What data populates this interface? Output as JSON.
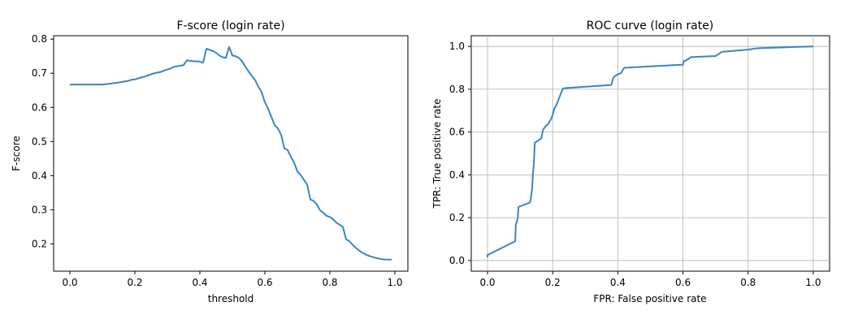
{
  "chart_data": [
    {
      "type": "line",
      "title": "F-score (login rate)",
      "xlabel": "threshold",
      "ylabel": "F-score",
      "xlim": [
        -0.05,
        1.04
      ],
      "ylim": [
        0.12,
        0.81
      ],
      "xticks": [
        0.0,
        0.2,
        0.4,
        0.6,
        0.8,
        1.0
      ],
      "xtick_labels": [
        "0.0",
        "0.2",
        "0.4",
        "0.6",
        "0.8",
        "1.0"
      ],
      "yticks": [
        0.2,
        0.3,
        0.4,
        0.5,
        0.6,
        0.7,
        0.8
      ],
      "ytick_labels": [
        "0.2",
        "0.3",
        "0.4",
        "0.5",
        "0.6",
        "0.7",
        "0.8"
      ],
      "grid": false,
      "line_color": "#3a86c0",
      "series": [
        {
          "x": [
            0.0,
            0.05,
            0.1,
            0.12,
            0.15,
            0.18,
            0.19,
            0.2,
            0.21,
            0.22,
            0.23,
            0.24,
            0.25,
            0.26,
            0.27,
            0.28,
            0.29,
            0.3,
            0.31,
            0.32,
            0.34,
            0.35,
            0.36,
            0.38,
            0.39,
            0.4,
            0.41,
            0.42,
            0.44,
            0.45,
            0.46,
            0.47,
            0.48,
            0.49,
            0.5,
            0.51,
            0.52,
            0.53,
            0.54,
            0.55,
            0.56,
            0.57,
            0.58,
            0.59,
            0.6,
            0.61,
            0.62,
            0.63,
            0.64,
            0.65,
            0.66,
            0.67,
            0.68,
            0.69,
            0.7,
            0.71,
            0.72,
            0.73,
            0.74,
            0.75,
            0.76,
            0.77,
            0.78,
            0.79,
            0.8,
            0.81,
            0.82,
            0.83,
            0.84,
            0.85,
            0.86,
            0.87,
            0.88,
            0.89,
            0.9,
            0.91,
            0.92,
            0.93,
            0.94,
            0.95,
            0.96,
            0.97,
            0.98,
            0.99
          ],
          "y": [
            0.667,
            0.667,
            0.667,
            0.669,
            0.673,
            0.678,
            0.681,
            0.682,
            0.685,
            0.688,
            0.69,
            0.694,
            0.697,
            0.7,
            0.702,
            0.704,
            0.708,
            0.711,
            0.714,
            0.719,
            0.722,
            0.724,
            0.738,
            0.735,
            0.735,
            0.734,
            0.731,
            0.772,
            0.765,
            0.76,
            0.752,
            0.747,
            0.745,
            0.777,
            0.752,
            0.75,
            0.745,
            0.735,
            0.719,
            0.705,
            0.692,
            0.68,
            0.66,
            0.645,
            0.615,
            0.596,
            0.572,
            0.548,
            0.538,
            0.52,
            0.48,
            0.475,
            0.455,
            0.438,
            0.412,
            0.402,
            0.388,
            0.374,
            0.33,
            0.326,
            0.315,
            0.298,
            0.291,
            0.282,
            0.279,
            0.272,
            0.262,
            0.256,
            0.25,
            0.213,
            0.208,
            0.197,
            0.188,
            0.181,
            0.174,
            0.169,
            0.165,
            0.162,
            0.159,
            0.157,
            0.155,
            0.154,
            0.154,
            0.154
          ]
        }
      ]
    },
    {
      "type": "line",
      "title": "ROC curve (login rate)",
      "xlabel": "FPR: False positive rate",
      "ylabel": "TPR: True positive rate",
      "xlim": [
        -0.05,
        1.05
      ],
      "ylim": [
        -0.05,
        1.05
      ],
      "xticks": [
        0.0,
        0.2,
        0.4,
        0.6,
        0.8,
        1.0
      ],
      "xtick_labels": [
        "0.0",
        "0.2",
        "0.4",
        "0.6",
        "0.8",
        "1.0"
      ],
      "yticks": [
        0.0,
        0.2,
        0.4,
        0.6,
        0.8,
        1.0
      ],
      "ytick_labels": [
        "0.0",
        "0.2",
        "0.4",
        "0.6",
        "0.8",
        "1.0"
      ],
      "grid": true,
      "line_color": "#3a86c0",
      "series": [
        {
          "x": [
            0.0,
            0.0,
            0.085,
            0.087,
            0.09,
            0.093,
            0.095,
            0.13,
            0.133,
            0.137,
            0.139,
            0.142,
            0.145,
            0.165,
            0.17,
            0.175,
            0.18,
            0.188,
            0.19,
            0.195,
            0.2,
            0.205,
            0.21,
            0.215,
            0.22,
            0.225,
            0.23,
            0.235,
            0.38,
            0.385,
            0.39,
            0.4,
            0.41,
            0.415,
            0.42,
            0.6,
            0.602,
            0.61,
            0.615,
            0.625,
            0.7,
            0.705,
            0.715,
            0.72,
            0.76,
            0.8,
            0.82,
            0.84,
            0.9,
            0.95,
            1.0
          ],
          "y": [
            0.015,
            0.025,
            0.09,
            0.17,
            0.18,
            0.2,
            0.25,
            0.27,
            0.29,
            0.34,
            0.4,
            0.45,
            0.55,
            0.57,
            0.61,
            0.62,
            0.63,
            0.64,
            0.65,
            0.66,
            0.68,
            0.71,
            0.72,
            0.74,
            0.76,
            0.78,
            0.8,
            0.805,
            0.82,
            0.85,
            0.86,
            0.87,
            0.875,
            0.89,
            0.9,
            0.915,
            0.93,
            0.935,
            0.94,
            0.95,
            0.955,
            0.96,
            0.97,
            0.975,
            0.98,
            0.985,
            0.99,
            0.992,
            0.995,
            0.998,
            1.0
          ]
        }
      ]
    }
  ]
}
